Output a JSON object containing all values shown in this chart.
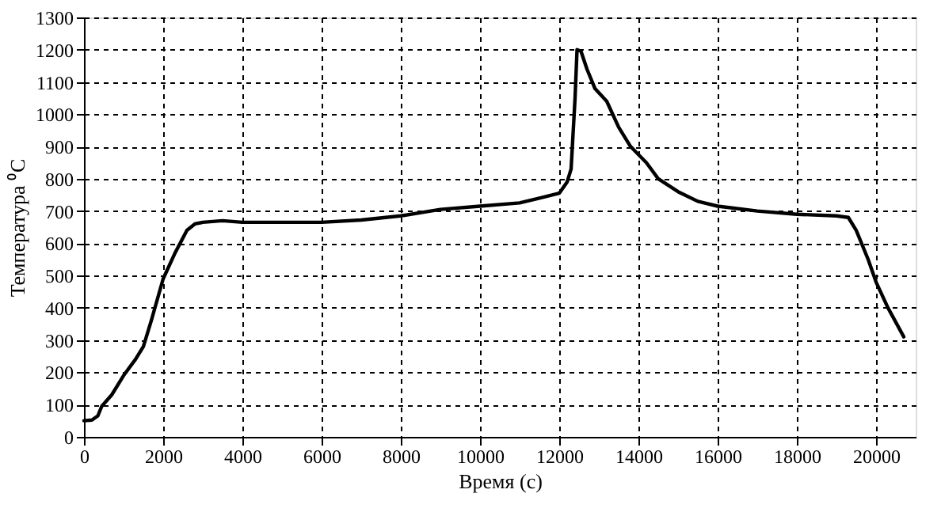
{
  "chart_data": {
    "type": "line",
    "xlabel": "Время (с)",
    "ylabel": "Температура ⁰C",
    "x": [
      0,
      200,
      350,
      450,
      700,
      1000,
      1300,
      1500,
      1700,
      2000,
      2300,
      2600,
      2800,
      3000,
      3500,
      4000,
      5000,
      6000,
      7000,
      8000,
      9000,
      10000,
      11000,
      11500,
      12000,
      12200,
      12300,
      12400,
      12450,
      12550,
      12700,
      12900,
      13200,
      13500,
      13800,
      14200,
      14500,
      15000,
      15500,
      16000,
      17000,
      18000,
      19000,
      19300,
      19500,
      19800,
      20000,
      20300,
      20700
    ],
    "series": [
      {
        "color": "#000000",
        "values": [
          50,
          52,
          65,
          95,
          130,
          190,
          240,
          280,
          360,
          490,
          570,
          640,
          660,
          665,
          670,
          665,
          665,
          665,
          672,
          685,
          705,
          715,
          725,
          740,
          755,
          790,
          830,
          1050,
          1200,
          1195,
          1140,
          1080,
          1040,
          960,
          900,
          850,
          800,
          760,
          730,
          715,
          700,
          690,
          685,
          680,
          640,
          550,
          480,
          400,
          310
        ]
      }
    ],
    "xlim": [
      0,
      21000
    ],
    "xticks": [
      0,
      2000,
      4000,
      6000,
      8000,
      10000,
      12000,
      14000,
      16000,
      18000,
      20000
    ],
    "ylim": [
      0,
      1300
    ],
    "yticks": [
      0,
      100,
      200,
      300,
      400,
      500,
      600,
      700,
      800,
      900,
      1000,
      1100,
      1200,
      1300
    ],
    "grid": true,
    "marker": "none",
    "line_style": "solid"
  }
}
